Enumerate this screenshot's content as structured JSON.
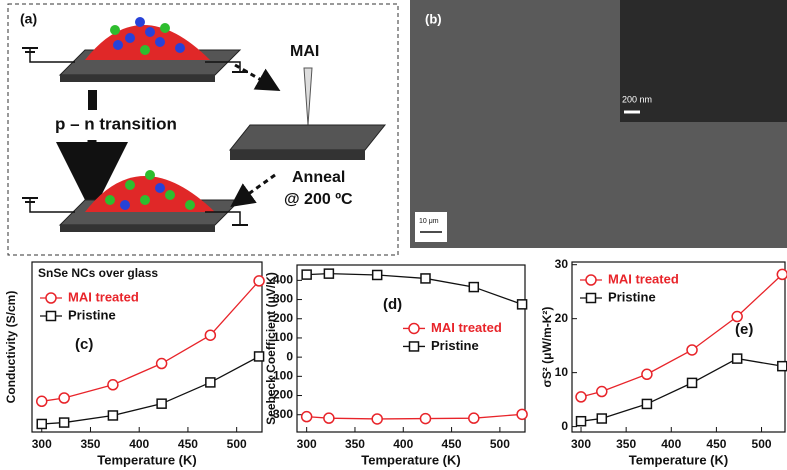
{
  "schematic": {
    "label": "(a)",
    "reagent": "MAI",
    "transition": "p – n transition",
    "step": "Anneal",
    "temperature": "@ 200 ºC"
  },
  "image": {
    "label": "(b)",
    "inset_scale": "200 nm",
    "scale": "10 μm"
  },
  "chart_data": [
    {
      "type": "line",
      "title": "SnSe NCs over glass",
      "panel": "(c)",
      "x_label": "Temperature (K)",
      "y_label": "Conductivity (S/cm)",
      "x": [
        300,
        323,
        373,
        423,
        473,
        523
      ],
      "xlim": [
        290,
        526
      ],
      "xticks": [
        300,
        350,
        400,
        450,
        500
      ],
      "ylim": [
        -0.1,
        3.5
      ],
      "legend": "upper left",
      "series": [
        {
          "name": "MAI treated",
          "color": "#e8242a",
          "marker": "circle",
          "values": [
            0.55,
            0.62,
            0.9,
            1.35,
            1.95,
            3.1
          ]
        },
        {
          "name": "Pristine",
          "color": "#111111",
          "marker": "square",
          "values": [
            0.07,
            0.1,
            0.25,
            0.5,
            0.95,
            1.5
          ]
        }
      ]
    },
    {
      "type": "line",
      "panel": "(d)",
      "x_label": "Temperature (K)",
      "y_label": "Seebeck Coefficient (μV/K)",
      "x": [
        300,
        323,
        373,
        423,
        473,
        523
      ],
      "xlim": [
        290,
        526
      ],
      "xticks": [
        300,
        350,
        400,
        450,
        500
      ],
      "ylim": [
        -390,
        480
      ],
      "yticks": [
        -300,
        -200,
        -100,
        0,
        100,
        200,
        300,
        400
      ],
      "legend": "center right",
      "series": [
        {
          "name": "MAI treated",
          "color": "#e8242a",
          "marker": "circle",
          "values": [
            -310,
            -318,
            -322,
            -320,
            -318,
            -298
          ]
        },
        {
          "name": "Pristine",
          "color": "#111111",
          "marker": "square",
          "values": [
            430,
            435,
            428,
            410,
            365,
            275
          ]
        }
      ]
    },
    {
      "type": "line",
      "panel": "(e)",
      "x_label": "Temperature (K)",
      "y_label": "σS² (μW/m-K²)",
      "x": [
        300,
        323,
        373,
        423,
        473,
        523
      ],
      "xlim": [
        290,
        526
      ],
      "xticks": [
        300,
        350,
        400,
        450,
        500
      ],
      "ylim": [
        -1,
        30.5
      ],
      "yticks": [
        0,
        10,
        20,
        30
      ],
      "legend": "upper left",
      "series": [
        {
          "name": "MAI treated",
          "color": "#e8242a",
          "marker": "circle",
          "values": [
            5.5,
            6.5,
            9.7,
            14.2,
            20.4,
            28.2
          ]
        },
        {
          "name": "Pristine",
          "color": "#111111",
          "marker": "square",
          "values": [
            1,
            1.5,
            4.2,
            8.1,
            12.6,
            11.2
          ]
        }
      ]
    }
  ]
}
